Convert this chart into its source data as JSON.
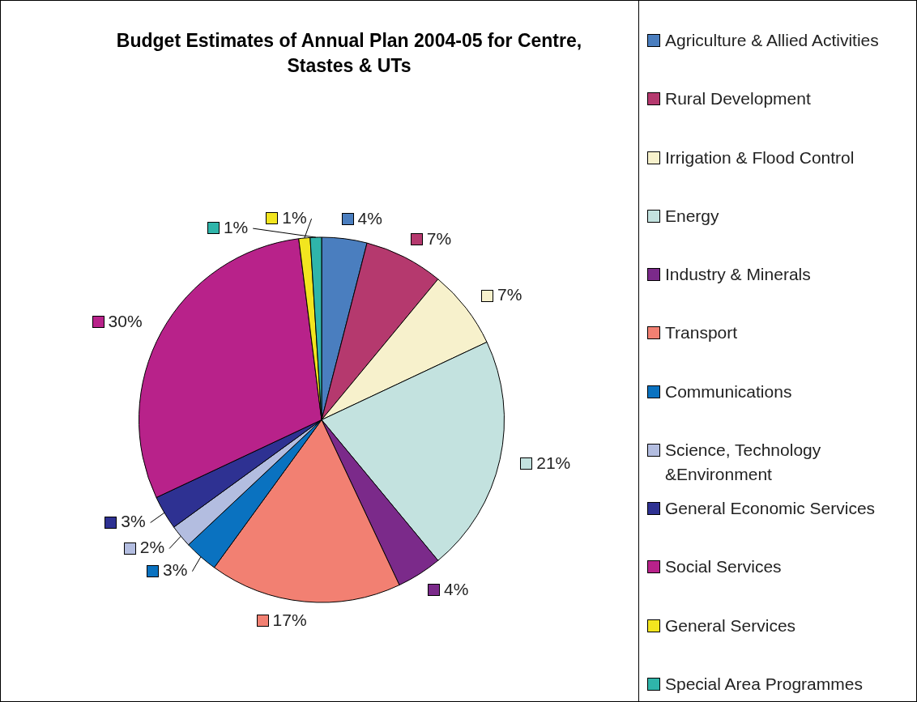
{
  "chart_data": {
    "type": "pie",
    "title": "Budget Estimates of Annual Plan 2004-05 for Centre, Stastes & UTs",
    "categories": [
      "Agriculture & Allied Activities",
      "Rural Development",
      "Irrigation & Flood Control",
      "Energy",
      "Industry & Minerals",
      "Transport",
      "Communications",
      "Science, Technology &Environment",
      "General Economic Services",
      "Social Services",
      "General Services",
      "Special Area Programmes"
    ],
    "values": [
      4,
      7,
      7,
      21,
      4,
      17,
      3,
      2,
      3,
      30,
      1,
      1
    ],
    "value_labels": [
      "4%",
      "7%",
      "7%",
      "21%",
      "4%",
      "17%",
      "3%",
      "2%",
      "3%",
      "30%",
      "1%",
      "1%"
    ],
    "colors": [
      "#4a7ebf",
      "#b5396e",
      "#f7f1cc",
      "#c3e2df",
      "#7b2a8a",
      "#f28072",
      "#0a72c0",
      "#b3bde0",
      "#2e3192",
      "#b8228a",
      "#f2e51f",
      "#2fb5aa"
    ],
    "legend": "right"
  }
}
